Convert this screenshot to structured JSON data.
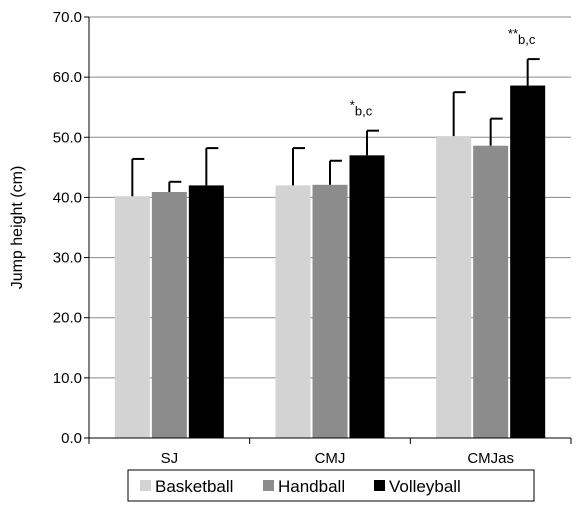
{
  "chart_data": {
    "type": "bar",
    "title": "",
    "xlabel": "",
    "ylabel": "Jump height (cm)",
    "ylim": [
      0,
      70
    ],
    "yticks": [
      "0.0",
      "10.0",
      "20.0",
      "30.0",
      "40.0",
      "50.0",
      "60.0",
      "70.0"
    ],
    "grid": true,
    "legend_position": "bottom",
    "categories": [
      "SJ",
      "CMJ",
      "CMJas"
    ],
    "series": [
      {
        "name": "Basketball",
        "color": "#d3d3d3",
        "values": [
          40.2,
          42.0,
          50.2
        ],
        "errors": [
          6.2,
          6.2,
          7.3
        ]
      },
      {
        "name": "Handball",
        "color": "#8c8c8c",
        "values": [
          40.9,
          42.1,
          48.6
        ],
        "errors": [
          1.7,
          4.0,
          4.5
        ]
      },
      {
        "name": "Volleyball",
        "color": "#000000",
        "values": [
          42.0,
          47.0,
          58.6
        ],
        "errors": [
          6.2,
          4.1,
          4.4
        ]
      }
    ],
    "annotations": [
      {
        "category": "CMJ",
        "star": "*",
        "sub": "b,c"
      },
      {
        "category": "CMJas",
        "star": "**",
        "sub": "b,c"
      }
    ]
  }
}
